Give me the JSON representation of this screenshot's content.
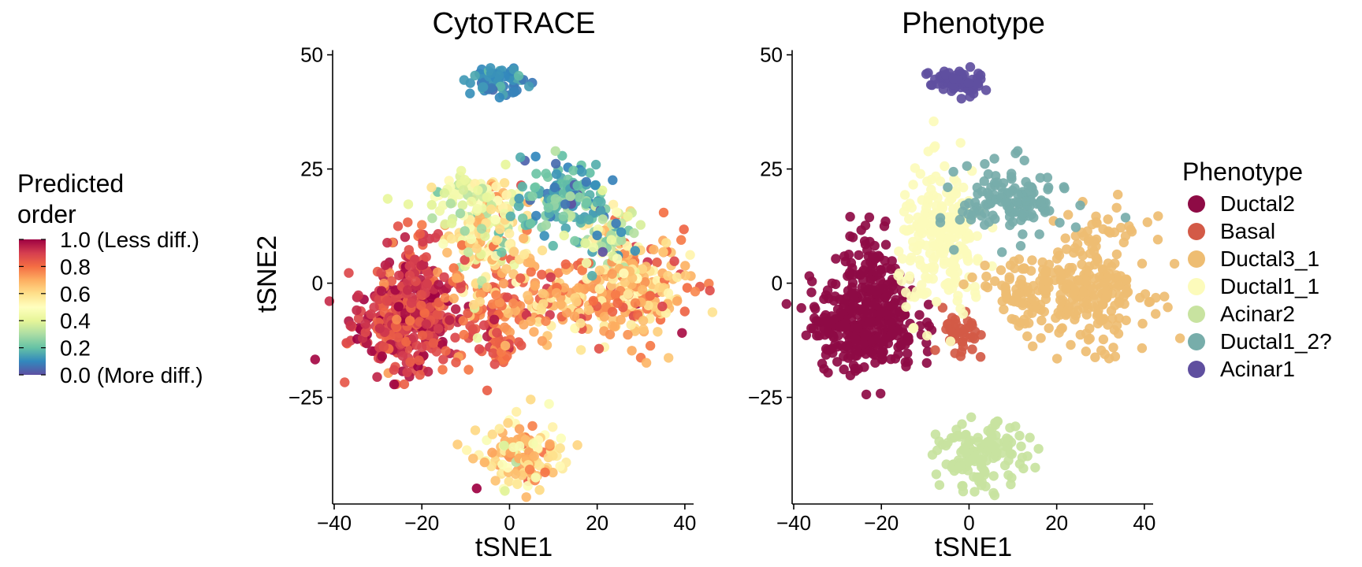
{
  "colorbar": {
    "title_lines": [
      "Predicted",
      "order"
    ],
    "ticks": [
      {
        "value": 1.0,
        "label": "1.0 (Less diff.)"
      },
      {
        "value": 0.8,
        "label": "0.8"
      },
      {
        "value": 0.6,
        "label": "0.6"
      },
      {
        "value": 0.4,
        "label": "0.4"
      },
      {
        "value": 0.2,
        "label": "0.2"
      },
      {
        "value": 0.0,
        "label": "0.0 (More diff.)"
      }
    ],
    "palette": [
      "#5E4FA2",
      "#3288BD",
      "#66C2A5",
      "#ABDDA4",
      "#E6F598",
      "#FFFFBF",
      "#FEE08B",
      "#FDAE61",
      "#F46D43",
      "#D53E4F",
      "#9E0142"
    ]
  },
  "chart_data": [
    {
      "type": "scatter",
      "title": "CytoTRACE",
      "xlabel": "tSNE1",
      "ylabel": "tSNE2",
      "xlim": [
        -40,
        42
      ],
      "ylim": [
        -48,
        52
      ],
      "xticks": [
        -40,
        -20,
        0,
        20,
        40
      ],
      "xtick_labels": [
        "−40",
        "−20",
        "0",
        "20",
        "40"
      ],
      "yticks": [
        -25,
        0,
        25,
        50
      ],
      "ytick_labels": [
        "−25",
        "0",
        "25",
        "50"
      ],
      "color_by": "predicted_order",
      "clusters": [
        {
          "name": "Ductal2",
          "center": [
            -24,
            -9
          ],
          "spread": [
            6,
            5
          ],
          "count": 320,
          "predicted_order": 0.9,
          "order_spread": 0.06
        },
        {
          "name": "Ductal2",
          "center": [
            -22,
            2
          ],
          "spread": [
            3.5,
            6
          ],
          "count": 90,
          "predicted_order": 0.88,
          "order_spread": 0.06
        },
        {
          "name": "Basal",
          "center": [
            -5,
            -6
          ],
          "spread": [
            5,
            6
          ],
          "count": 80,
          "predicted_order": 0.82,
          "order_spread": 0.06
        },
        {
          "name": "Basal",
          "center": [
            -2,
            -14
          ],
          "spread": [
            2,
            3
          ],
          "count": 30,
          "predicted_order": 0.78,
          "order_spread": 0.06
        },
        {
          "name": "Ductal1_1",
          "center": [
            -5,
            10
          ],
          "spread": [
            5,
            7
          ],
          "count": 180,
          "predicted_order": 0.55,
          "order_spread": 0.15
        },
        {
          "name": "Acinar2",
          "center": [
            -9,
            18
          ],
          "spread": [
            5,
            3
          ],
          "count": 60,
          "predicted_order": 0.45,
          "order_spread": 0.08
        },
        {
          "name": "Ductal3_1",
          "center": [
            30,
            -2
          ],
          "spread": [
            6,
            6
          ],
          "count": 180,
          "predicted_order": 0.68,
          "order_spread": 0.12
        },
        {
          "name": "Ductal3_1",
          "center": [
            12,
            -4
          ],
          "spread": [
            8,
            4
          ],
          "count": 140,
          "predicted_order": 0.7,
          "order_spread": 0.1
        },
        {
          "name": "Ductal3_1",
          "center": [
            24,
            6
          ],
          "spread": [
            4,
            5
          ],
          "count": 70,
          "predicted_order": 0.6,
          "order_spread": 0.12
        },
        {
          "name": "Ductal1_2?",
          "center": [
            13,
            19
          ],
          "spread": [
            5,
            4
          ],
          "count": 130,
          "predicted_order": 0.18,
          "order_spread": 0.08
        },
        {
          "name": "Ductal1_2?",
          "center": [
            22,
            10
          ],
          "spread": [
            4,
            3
          ],
          "count": 50,
          "predicted_order": 0.3,
          "order_spread": 0.1
        },
        {
          "name": "Acinar1",
          "center": [
            -3,
            44
          ],
          "spread": [
            3,
            1.5
          ],
          "count": 70,
          "predicted_order": 0.12,
          "order_spread": 0.04
        },
        {
          "name": "Acinar2",
          "center": [
            3,
            -38
          ],
          "spread": [
            5,
            3.5
          ],
          "count": 130,
          "predicted_order": 0.6,
          "order_spread": 0.12
        }
      ]
    },
    {
      "type": "scatter",
      "title": "Phenotype",
      "xlabel": "tSNE1",
      "ylabel": "",
      "xlim": [
        -40,
        42
      ],
      "ylim": [
        -48,
        52
      ],
      "xticks": [
        -40,
        -20,
        0,
        20,
        40
      ],
      "xtick_labels": [
        "−40",
        "−20",
        "0",
        "20",
        "40"
      ],
      "yticks": [
        -25,
        0,
        25,
        50
      ],
      "ytick_labels": [
        "−25",
        "0",
        "25",
        "50"
      ],
      "color_by": "phenotype",
      "legend": {
        "title": "Phenotype",
        "position": "right",
        "entries": [
          {
            "name": "Ductal2",
            "color": "#8E0B45"
          },
          {
            "name": "Basal",
            "color": "#D35A47"
          },
          {
            "name": "Ductal3_1",
            "color": "#EEBD72"
          },
          {
            "name": "Ductal1_1",
            "color": "#FCFBBB"
          },
          {
            "name": "Acinar2",
            "color": "#C8E3A0"
          },
          {
            "name": "Ductal1_2?",
            "color": "#77ADAA"
          },
          {
            "name": "Acinar1",
            "color": "#5F4F9F"
          }
        ]
      },
      "clusters": [
        {
          "name": "Ductal2",
          "center": [
            -24,
            -9
          ],
          "spread": [
            6,
            5
          ],
          "count": 320
        },
        {
          "name": "Ductal2",
          "center": [
            -22,
            2
          ],
          "spread": [
            3.5,
            6
          ],
          "count": 90
        },
        {
          "name": "Basal",
          "center": [
            -2,
            -12
          ],
          "spread": [
            2,
            3
          ],
          "count": 40
        },
        {
          "name": "Ductal1_1",
          "center": [
            -6,
            9
          ],
          "spread": [
            5,
            8
          ],
          "count": 220
        },
        {
          "name": "Ductal3_1",
          "center": [
            29,
            0
          ],
          "spread": [
            6,
            7
          ],
          "count": 200
        },
        {
          "name": "Ductal3_1",
          "center": [
            15,
            -2
          ],
          "spread": [
            7,
            4
          ],
          "count": 120
        },
        {
          "name": "Ductal1_2?",
          "center": [
            10,
            18
          ],
          "spread": [
            6,
            4
          ],
          "count": 130
        },
        {
          "name": "Acinar1",
          "center": [
            -3,
            44
          ],
          "spread": [
            3,
            1.5
          ],
          "count": 70
        },
        {
          "name": "Acinar2",
          "center": [
            3,
            -38
          ],
          "spread": [
            5,
            3.5
          ],
          "count": 130
        }
      ]
    }
  ]
}
